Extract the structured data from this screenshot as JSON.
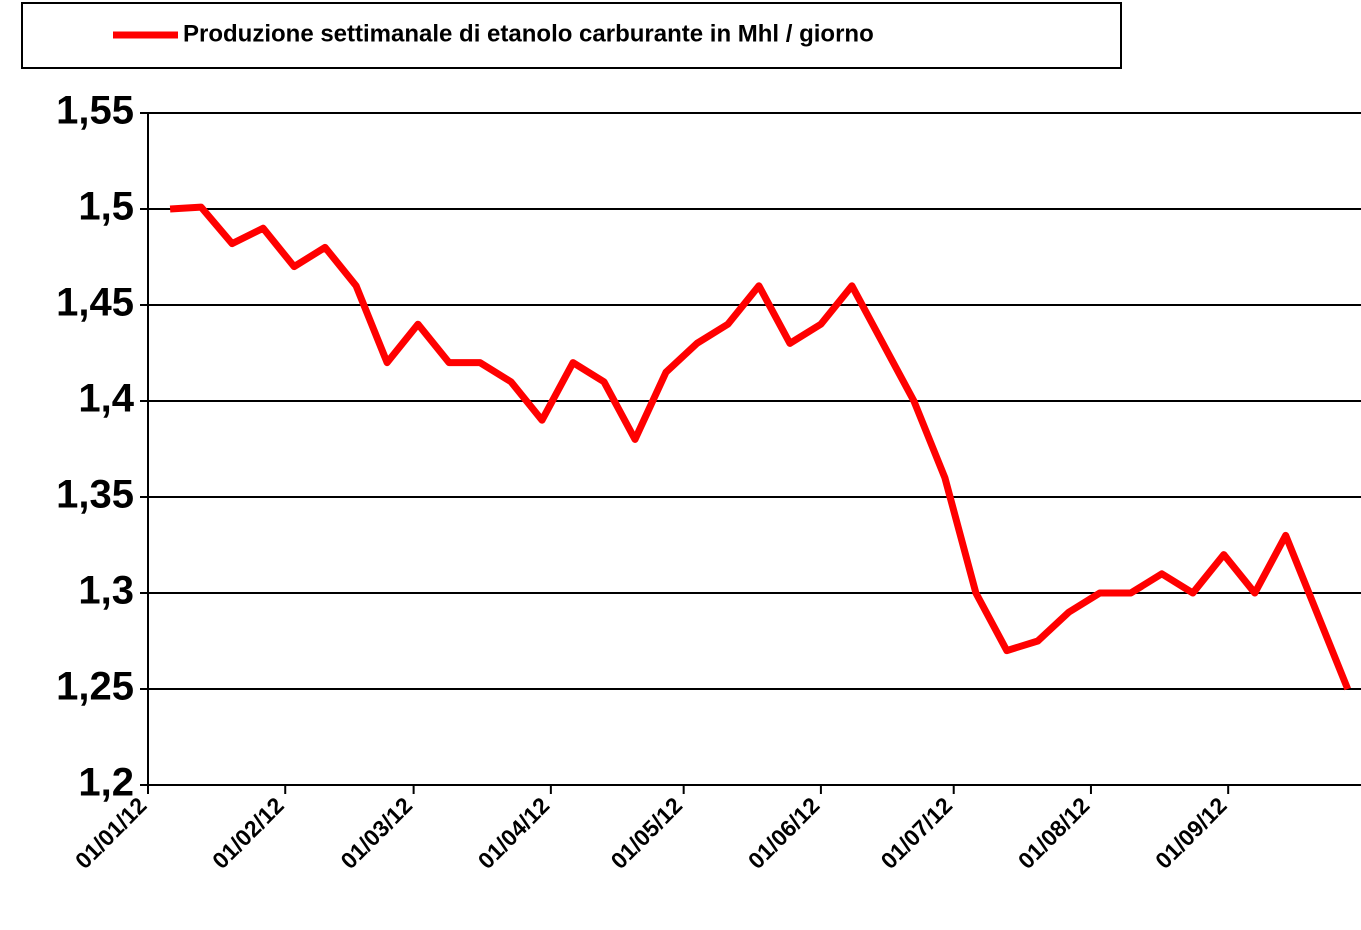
{
  "chart_data": {
    "type": "line",
    "x": [
      "2012-01-06",
      "2012-01-13",
      "2012-01-20",
      "2012-01-27",
      "2012-02-03",
      "2012-02-10",
      "2012-02-17",
      "2012-02-24",
      "2012-03-02",
      "2012-03-09",
      "2012-03-16",
      "2012-03-23",
      "2012-03-30",
      "2012-04-06",
      "2012-04-13",
      "2012-04-20",
      "2012-04-27",
      "2012-05-04",
      "2012-05-11",
      "2012-05-18",
      "2012-05-25",
      "2012-06-01",
      "2012-06-08",
      "2012-06-15",
      "2012-06-22",
      "2012-06-29",
      "2012-07-06",
      "2012-07-13",
      "2012-07-20",
      "2012-07-27",
      "2012-08-03",
      "2012-08-10",
      "2012-08-17",
      "2012-08-24",
      "2012-08-31",
      "2012-09-07",
      "2012-09-14",
      "2012-09-21",
      "2012-09-28"
    ],
    "series": [
      {
        "name": "Produzione settimanale di etanolo carburante in Mhl / giorno",
        "color": "#ff0000",
        "values": [
          1.5,
          1.501,
          1.482,
          1.49,
          1.47,
          1.48,
          1.46,
          1.42,
          1.44,
          1.42,
          1.42,
          1.41,
          1.39,
          1.42,
          1.41,
          1.38,
          1.415,
          1.43,
          1.44,
          1.46,
          1.43,
          1.44,
          1.46,
          1.43,
          1.4,
          1.36,
          1.3,
          1.27,
          1.275,
          1.29,
          1.3,
          1.3,
          1.31,
          1.3,
          1.32,
          1.3,
          1.33,
          1.29,
          1.25
        ]
      }
    ],
    "xlim": [
      "2012-01-01",
      "2012-10-01"
    ],
    "xticks": [
      {
        "value": "2012-01-01",
        "label": "01/01/12"
      },
      {
        "value": "2012-02-01",
        "label": "01/02/12"
      },
      {
        "value": "2012-03-01",
        "label": "01/03/12"
      },
      {
        "value": "2012-04-01",
        "label": "01/04/12"
      },
      {
        "value": "2012-05-01",
        "label": "01/05/12"
      },
      {
        "value": "2012-06-01",
        "label": "01/06/12"
      },
      {
        "value": "2012-07-01",
        "label": "01/07/12"
      },
      {
        "value": "2012-08-01",
        "label": "01/08/12"
      },
      {
        "value": "2012-09-01",
        "label": "01/09/12"
      }
    ],
    "ylim": [
      1.2,
      1.55
    ],
    "yticks": [
      {
        "value": 1.2,
        "label": "1,2"
      },
      {
        "value": 1.25,
        "label": "1,25"
      },
      {
        "value": 1.3,
        "label": "1,3"
      },
      {
        "value": 1.35,
        "label": "1,35"
      },
      {
        "value": 1.4,
        "label": "1,4"
      },
      {
        "value": 1.45,
        "label": "1,45"
      },
      {
        "value": 1.5,
        "label": "1,5"
      },
      {
        "value": 1.55,
        "label": "1,55"
      }
    ],
    "grid": true,
    "legend": "top"
  }
}
